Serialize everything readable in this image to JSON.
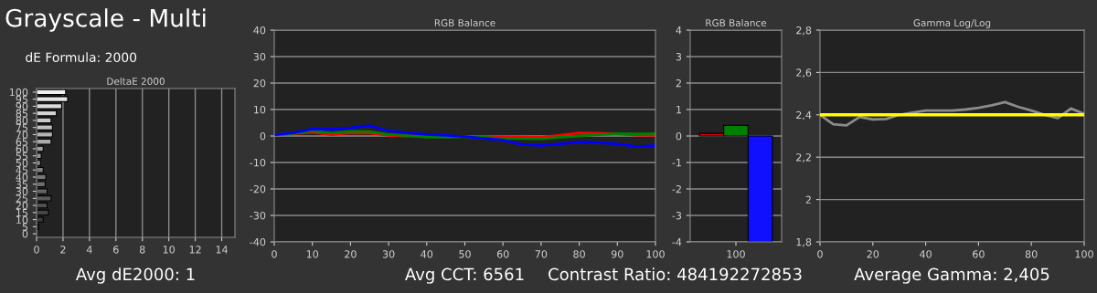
{
  "chart_data": [
    {
      "type": "bar",
      "orientation": "horizontal",
      "title": "DeltaE 2000",
      "annotations": [
        "Grayscale - Multi",
        "dE Formula: 2000",
        "Avg dE2000: 1"
      ],
      "categories": [
        "100",
        "95",
        "90",
        "85",
        "80",
        "75",
        "70",
        "65",
        "60",
        "55",
        "50",
        "45",
        "40",
        "35",
        "30",
        "25",
        "20",
        "15",
        "10",
        "5",
        "0"
      ],
      "values": [
        2.2,
        2.35,
        1.9,
        1.5,
        1.1,
        1.2,
        1.2,
        1.1,
        0.5,
        0.35,
        0.3,
        0.5,
        0.7,
        0.65,
        0.8,
        1.1,
        0.8,
        0.9,
        0.5,
        0.15,
        0
      ],
      "colors": [
        "#f0f0f0",
        "#e6e6e6",
        "#dcdcdc",
        "#d2d2d2",
        "#c8c8c8",
        "#bebebe",
        "#b4b4b4",
        "#aaaaaa",
        "#a0a0a0",
        "#969696",
        "#8c8c8c",
        "#828282",
        "#787878",
        "#6e6e6e",
        "#646464",
        "#5a5a5a",
        "#505050",
        "#464646",
        "#3c3c3c",
        "#323232",
        "#282828"
      ],
      "xlim": [
        0,
        15
      ],
      "xticks": [
        0,
        2,
        4,
        6,
        8,
        10,
        12,
        14
      ],
      "grid": "x"
    },
    {
      "type": "line",
      "title": "RGB Balance",
      "annotations": [
        "Avg CCT: 6561"
      ],
      "x": [
        0,
        5,
        10,
        15,
        20,
        25,
        30,
        35,
        40,
        45,
        50,
        55,
        60,
        65,
        70,
        75,
        80,
        85,
        90,
        95,
        100
      ],
      "series": [
        {
          "color": "#ff0000",
          "values": [
            0.5,
            0.8,
            1.4,
            0.5,
            1.2,
            1.1,
            0.2,
            0,
            0,
            -0.2,
            -0.2,
            -0.2,
            -0.3,
            -0.4,
            -0.5,
            0.3,
            1.2,
            1.1,
            0.8,
            0.3,
            0.2
          ]
        },
        {
          "color": "#008000",
          "values": [
            0.5,
            0.9,
            1.9,
            1.2,
            1.8,
            1.7,
            0.6,
            0.1,
            -0.5,
            -0.5,
            -0.3,
            -0.5,
            -0.9,
            -1.0,
            -1.1,
            -0.5,
            0,
            0.5,
            0.9,
            0.8,
            0.9
          ]
        },
        {
          "color": "#0000ff",
          "values": [
            0.5,
            1.2,
            2.6,
            2.5,
            3.1,
            3.9,
            1.9,
            1.2,
            0.6,
            0.2,
            -0.2,
            -0.9,
            -1.5,
            -3.2,
            -3.6,
            -3.0,
            -2.3,
            -2.5,
            -3.0,
            -4.0,
            -3.6
          ]
        }
      ],
      "xlim": [
        0,
        100
      ],
      "xticks": [
        0,
        10,
        20,
        30,
        40,
        50,
        60,
        70,
        80,
        90,
        100
      ],
      "ylim": [
        -40,
        40
      ],
      "yticks": [
        -40,
        -30,
        -20,
        -10,
        0,
        10,
        20,
        30,
        40
      ],
      "grid": "y"
    },
    {
      "type": "bar",
      "title": "RGB Balance",
      "annotations": [
        "Contrast Ratio: 484192272853"
      ],
      "categories": [
        "100"
      ],
      "series": [
        {
          "color": "#e00000",
          "values": [
            0.1
          ]
        },
        {
          "color": "#008000",
          "values": [
            0.4
          ]
        },
        {
          "color": "#1010ff",
          "values": [
            -4
          ]
        }
      ],
      "ylim": [
        -4,
        4
      ],
      "yticks": [
        -4,
        -3,
        -2,
        -1,
        0,
        1,
        2,
        3,
        4
      ],
      "grid": "y"
    },
    {
      "type": "line",
      "title": "Gamma Log/Log",
      "annotations": [
        "Average Gamma: 2,405"
      ],
      "x": [
        0,
        5,
        10,
        15,
        20,
        25,
        30,
        35,
        40,
        45,
        50,
        55,
        60,
        65,
        70,
        75,
        80,
        85,
        90,
        95,
        100
      ],
      "series": [
        {
          "color": "#8c8c8c",
          "values": [
            2.4,
            2.355,
            2.35,
            2.39,
            2.378,
            2.38,
            2.4,
            2.41,
            2.42,
            2.42,
            2.42,
            2.425,
            2.433,
            2.445,
            2.46,
            2.438,
            2.42,
            2.4,
            2.385,
            2.43,
            2.405
          ]
        }
      ],
      "ref_lines": [
        {
          "axis": "y",
          "value": 2.4,
          "color": "#ffff00"
        }
      ],
      "xlim": [
        0,
        100
      ],
      "xticks": [
        0,
        20,
        40,
        60,
        80,
        100
      ],
      "ylim": [
        1.8,
        2.8
      ],
      "yticks": [
        {
          "value": 1.8,
          "label": "1,8"
        },
        2,
        {
          "value": 2.2,
          "label": "2,2"
        },
        {
          "value": 2.4,
          "label": "2,4"
        },
        {
          "value": 2.6,
          "label": "2,6"
        },
        {
          "value": 2.8,
          "label": "2,8"
        }
      ],
      "grid": "y"
    }
  ]
}
